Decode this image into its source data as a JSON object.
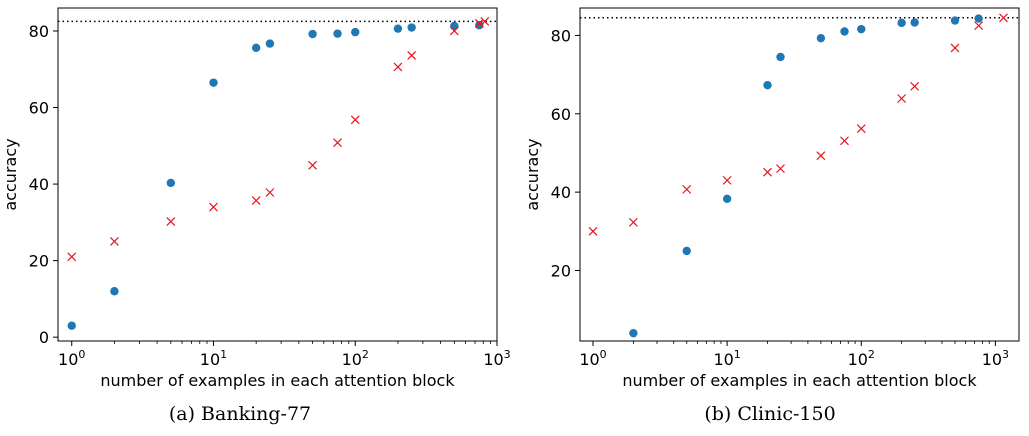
{
  "chart_data": [
    {
      "type": "scatter",
      "caption": "(a) Banking-77",
      "xlabel": "number of examples in each attention block",
      "ylabel": "accuracy",
      "xscale": "log",
      "xlim": [
        0.8,
        1000
      ],
      "ylim": [
        -1,
        86
      ],
      "x_ticks": [
        1,
        10,
        100,
        1000
      ],
      "x_tick_labels": [
        {
          "base": "10",
          "exp": "0"
        },
        {
          "base": "10",
          "exp": "1"
        },
        {
          "base": "10",
          "exp": "2"
        },
        {
          "base": "10",
          "exp": "3"
        }
      ],
      "y_ticks": [
        0,
        20,
        40,
        60,
        80
      ],
      "y_tick_labels": [
        "0",
        "20",
        "40",
        "60",
        "80"
      ],
      "reference_line": {
        "y": 82.5,
        "style": "dotted",
        "color": "#000000"
      },
      "series": [
        {
          "marker": "circle",
          "color": "#1f77b4",
          "points": [
            [
              1,
              3
            ],
            [
              2,
              12
            ],
            [
              5,
              40.3
            ],
            [
              10,
              66.5
            ],
            [
              20,
              75.6
            ],
            [
              25,
              76.7
            ],
            [
              50,
              79.2
            ],
            [
              75,
              79.3
            ],
            [
              100,
              79.7
            ],
            [
              200,
              80.6
            ],
            [
              250,
              80.9
            ],
            [
              500,
              81.3
            ],
            [
              750,
              81.5
            ]
          ]
        },
        {
          "marker": "x",
          "color": "#e8141c",
          "points": [
            [
              1,
              21
            ],
            [
              2,
              25
            ],
            [
              5,
              30.2
            ],
            [
              10,
              34
            ],
            [
              20,
              35.7
            ],
            [
              25,
              37.8
            ],
            [
              50,
              44.9
            ],
            [
              75,
              50.8
            ],
            [
              100,
              56.8
            ],
            [
              200,
              70.6
            ],
            [
              250,
              73.6
            ],
            [
              500,
              80
            ],
            [
              750,
              82
            ],
            [
              820,
              82.5
            ]
          ]
        }
      ]
    },
    {
      "type": "scatter",
      "caption": "(b) Clinic-150",
      "xlabel": "number of examples in each attention block",
      "ylabel": "accuracy",
      "xscale": "log",
      "xlim": [
        0.8,
        1500
      ],
      "ylim": [
        2,
        87
      ],
      "x_ticks": [
        1,
        10,
        100,
        1000
      ],
      "x_tick_labels": [
        {
          "base": "10",
          "exp": "0"
        },
        {
          "base": "10",
          "exp": "1"
        },
        {
          "base": "10",
          "exp": "2"
        },
        {
          "base": "10",
          "exp": "3"
        }
      ],
      "y_ticks": [
        20,
        40,
        60,
        80
      ],
      "y_tick_labels": [
        "20",
        "40",
        "60",
        "80"
      ],
      "reference_line": {
        "y": 84.5,
        "style": "dotted",
        "color": "#000000"
      },
      "series": [
        {
          "marker": "circle",
          "color": "#1f77b4",
          "points": [
            [
              2,
              4
            ],
            [
              5,
              25
            ],
            [
              10,
              38.3
            ],
            [
              20,
              67.3
            ],
            [
              25,
              74.5
            ],
            [
              50,
              79.3
            ],
            [
              75,
              81
            ],
            [
              100,
              81.6
            ],
            [
              200,
              83.2
            ],
            [
              250,
              83.3
            ],
            [
              500,
              83.8
            ],
            [
              750,
              84.3
            ]
          ]
        },
        {
          "marker": "x",
          "color": "#e8141c",
          "points": [
            [
              1,
              30
            ],
            [
              2,
              32.3
            ],
            [
              5,
              40.7
            ],
            [
              10,
              43
            ],
            [
              20,
              45.1
            ],
            [
              25,
              46
            ],
            [
              50,
              49.3
            ],
            [
              75,
              53.1
            ],
            [
              100,
              56.2
            ],
            [
              200,
              63.9
            ],
            [
              250,
              67
            ],
            [
              500,
              76.8
            ],
            [
              750,
              82.5
            ],
            [
              1150,
              84.5
            ]
          ]
        }
      ]
    }
  ]
}
